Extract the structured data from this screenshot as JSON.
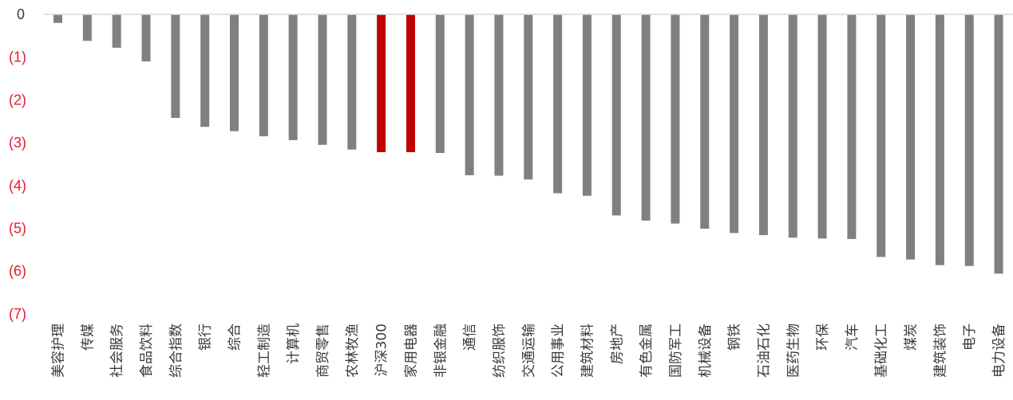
{
  "chart_data": {
    "type": "bar",
    "categories": [
      "美容护理",
      "传媒",
      "社会服务",
      "食品饮料",
      "综合指数",
      "银行",
      "综合",
      "轻工制造",
      "计算机",
      "商贸零售",
      "农林牧渔",
      "沪深300",
      "家用电器",
      "非银金融",
      "通信",
      "纺织服饰",
      "交通运输",
      "公用事业",
      "建筑材料",
      "房地产",
      "有色金属",
      "国防军工",
      "机械设备",
      "钢铁",
      "石油石化",
      "医药生物",
      "环保",
      "汽车",
      "基础化工",
      "煤炭",
      "建筑装饰",
      "电子",
      "电力设备"
    ],
    "values": [
      -0.2,
      -0.62,
      -0.78,
      -1.1,
      -2.42,
      -2.63,
      -2.73,
      -2.85,
      -2.94,
      -3.05,
      -3.16,
      -3.22,
      -3.22,
      -3.24,
      -3.76,
      -3.77,
      -3.86,
      -4.18,
      -4.24,
      -4.7,
      -4.82,
      -4.89,
      -5.01,
      -5.11,
      -5.16,
      -5.22,
      -5.24,
      -5.25,
      -5.67,
      -5.73,
      -5.86,
      -5.88,
      -6.06
    ],
    "highlight": [
      "沪深300",
      "家用电器"
    ],
    "yticks": [
      "0",
      "(1)",
      "(2)",
      "(3)",
      "(4)",
      "(5)",
      "(6)",
      "(7)"
    ],
    "ylim": [
      -7,
      0
    ],
    "title": "",
    "xlabel": "",
    "ylabel": "",
    "grid": false,
    "colors": {
      "bar": "#808080",
      "highlight_bar": "#c00000",
      "axis": "#d9d9d9",
      "tick_negative": "#e8192c",
      "tick_zero": "#3a3a3a"
    }
  }
}
